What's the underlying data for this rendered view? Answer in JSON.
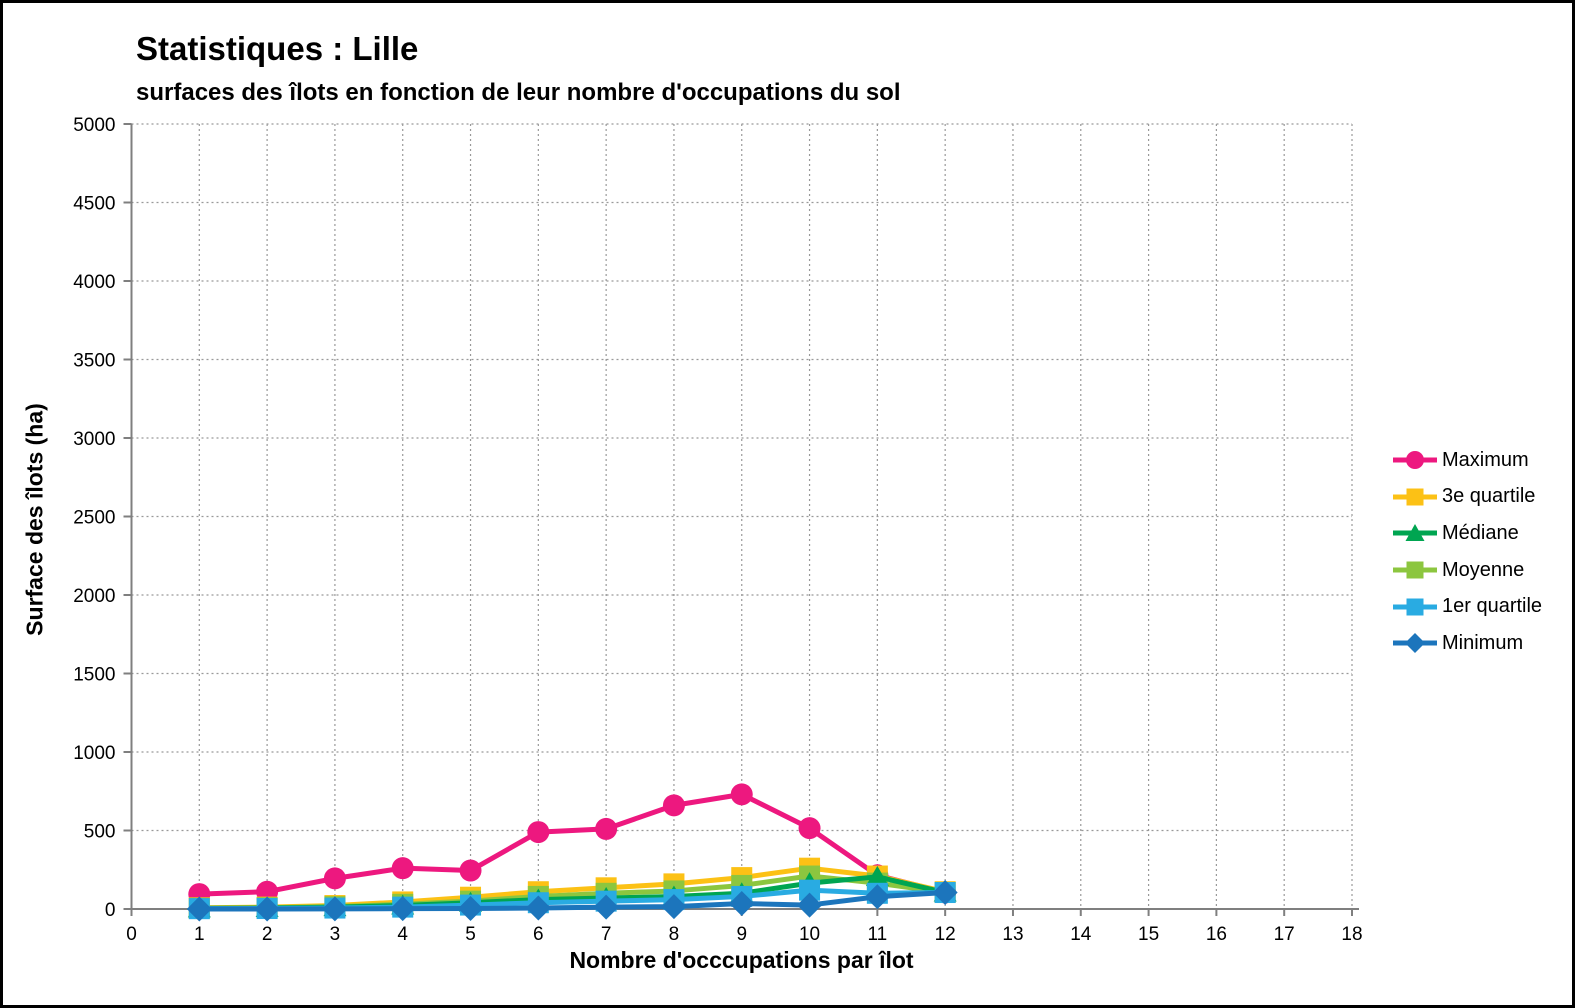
{
  "header": {
    "title": "Statistiques : Lille",
    "subtitle": "surfaces des îlots en fonction de leur nombre d'occupations du sol"
  },
  "chart_data": {
    "type": "line",
    "title": "Statistiques : Lille",
    "subtitle": "surfaces des îlots en fonction de leur nombre d'occupations du sol",
    "xlabel": "Nombre d'occcupations par îlot",
    "ylabel": "Surface des îlots (ha)",
    "xlim": [
      0,
      18
    ],
    "ylim": [
      0,
      5000
    ],
    "x_tick_step": 1,
    "y_tick_step": 500,
    "grid": true,
    "legend_position": "right",
    "x": [
      1,
      2,
      3,
      4,
      5,
      6,
      7,
      8,
      9,
      10,
      11,
      12
    ],
    "series": [
      {
        "name": "Maximum",
        "color": "#ed187f",
        "marker": "circle",
        "values": [
          95,
          110,
          195,
          260,
          245,
          490,
          510,
          660,
          730,
          515,
          215,
          105
        ]
      },
      {
        "name": "3e quartile",
        "color": "#fcc115",
        "marker": "square",
        "values": [
          8,
          12,
          22,
          45,
          75,
          110,
          135,
          160,
          200,
          260,
          210,
          110
        ]
      },
      {
        "name": "Médiane",
        "color": "#00a551",
        "marker": "triangle",
        "values": [
          4,
          6,
          12,
          22,
          40,
          60,
          70,
          80,
          100,
          165,
          205,
          105
        ]
      },
      {
        "name": "Moyenne",
        "color": "#8cc63f",
        "marker": "square",
        "values": [
          5,
          8,
          15,
          30,
          50,
          80,
          100,
          115,
          150,
          210,
          165,
          105
        ]
      },
      {
        "name": "1er quartile",
        "color": "#29abe2",
        "marker": "square",
        "values": [
          2,
          3,
          6,
          12,
          25,
          40,
          50,
          60,
          80,
          120,
          100,
          105
        ]
      },
      {
        "name": "Minimum",
        "color": "#1c75bc",
        "marker": "diamond",
        "values": [
          0,
          0,
          1,
          2,
          3,
          6,
          12,
          15,
          35,
          25,
          78,
          105
        ]
      }
    ],
    "draw_order": [
      0,
      1,
      3,
      2,
      4,
      5
    ]
  },
  "colors": {
    "grid": "#999999",
    "axis": "#7f7f7f",
    "background": "#ffffff",
    "border": "#000000",
    "text": "#000000"
  }
}
